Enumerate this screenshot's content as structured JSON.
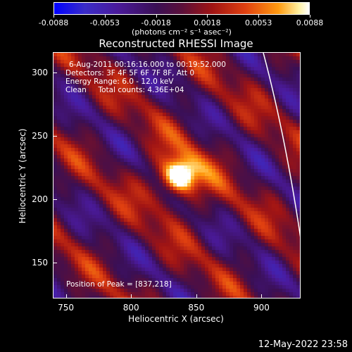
{
  "colorbar": {
    "ticks": [
      "-0.0088",
      "-0.0053",
      "-0.0018",
      "0.0018",
      "0.0053",
      "0.0088"
    ],
    "unit": "(photons cm⁻² s⁻¹ asec⁻²)"
  },
  "chart_data": {
    "type": "heatmap",
    "title": "Reconstructed RHESSI Image",
    "xlabel": "Heliocentric X (arcsec)",
    "ylabel": "Heliocentric Y (arcsec)",
    "xlim": [
      740,
      930
    ],
    "ylim": [
      122,
      316
    ],
    "xticks": [
      "750",
      "800",
      "850",
      "900"
    ],
    "yticks": [
      "150",
      "200",
      "250",
      "300"
    ],
    "clim": [
      -0.0088,
      0.0088
    ],
    "peak": [
      837,
      218
    ],
    "annotations": [
      "6-Aug-2011 00:16:16.000 to 00:19:52.000",
      "Detectors: 3F 4F 5F 6F 7F 8F, Att 0",
      "Energy Range: 6.0 - 12.0 keV",
      "Clean     Total counts: 4.36E+04"
    ],
    "peak_label": "Position of Peak = [837,218]"
  },
  "footer": {
    "timestamp": "12-May-2022 23:58"
  }
}
